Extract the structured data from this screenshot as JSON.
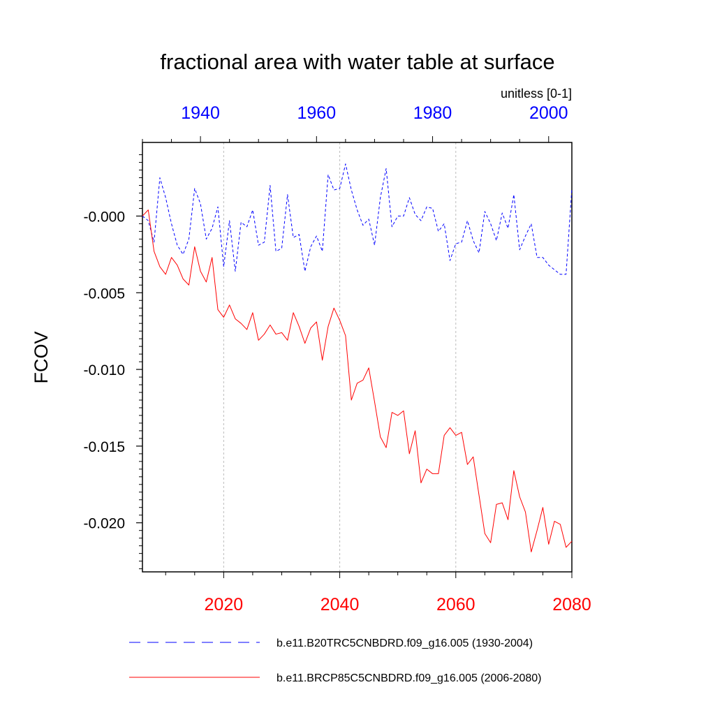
{
  "chart_data": {
    "type": "line",
    "title": "fractional area with water table at surface",
    "units_label": "unitless [0-1]",
    "ylabel": "FCOV",
    "ylim": [
      -0.0232,
      0.0048
    ],
    "y_major_ticks": [
      0.0,
      -0.005,
      -0.01,
      -0.015,
      -0.02
    ],
    "y_tick_labels": [
      "-0.000",
      "-0.005",
      "-0.010",
      "-0.015",
      "-0.020"
    ],
    "top_axis": {
      "color": "#0000ff",
      "xlim": [
        1930,
        2004
      ],
      "ticks": [
        1940,
        1960,
        1980,
        2000
      ],
      "tick_labels": [
        "1940",
        "1960",
        "1980",
        "2000"
      ]
    },
    "bottom_axis": {
      "color": "#ff0000",
      "xlim": [
        2006,
        2080
      ],
      "ticks": [
        2020,
        2040,
        2060,
        2080
      ],
      "tick_labels": [
        "2020",
        "2040",
        "2060",
        "2080"
      ]
    },
    "grid": "vertical dashed at major ticks",
    "series": [
      {
        "name": "b.e11.B20TRC5CNBDRD.f09_g16.005 (1930-2004)",
        "color": "#0000ff",
        "style": "dashed",
        "axis": "top",
        "x_start": 1930,
        "values": [
          0.0,
          -0.0003,
          -0.0017,
          0.0025,
          0.0012,
          -0.0005,
          -0.0019,
          -0.0025,
          -0.0015,
          0.0018,
          0.0008,
          -0.0015,
          -0.0008,
          0.0006,
          -0.0033,
          -0.0003,
          -0.0036,
          -0.0004,
          -0.0007,
          0.0004,
          -0.0019,
          -0.0017,
          0.002,
          -0.0023,
          -0.0021,
          0.0014,
          -0.0014,
          -0.0012,
          -0.0036,
          -0.002,
          -0.0013,
          -0.0023,
          0.0027,
          0.0017,
          0.0018,
          0.0034,
          0.0017,
          0.0004,
          -0.0006,
          -0.0002,
          -0.0019,
          0.0012,
          0.0031,
          -0.0007,
          0.0,
          0.0,
          0.0012,
          0.0001,
          -0.0003,
          0.0006,
          0.0005,
          -0.001,
          -0.0005,
          -0.0029,
          -0.0018,
          -0.0017,
          -0.0003,
          -0.0016,
          -0.0024,
          0.0003,
          -0.0005,
          -0.0016,
          0.0002,
          -0.0008,
          0.0014,
          -0.0022,
          -0.0013,
          -0.0005,
          -0.0027,
          -0.0027,
          -0.0032,
          -0.0035,
          -0.0038,
          -0.0038,
          0.0018
        ]
      },
      {
        "name": "b.e11.BRCP85C5CNBDRD.f09_g16.005 (2006-2080)",
        "color": "#ff0000",
        "style": "solid",
        "axis": "bottom",
        "x_start": 2006,
        "values": [
          0.0,
          0.0004,
          -0.0023,
          -0.0033,
          -0.0038,
          -0.0027,
          -0.0032,
          -0.0041,
          -0.0045,
          -0.002,
          -0.0036,
          -0.0043,
          -0.0027,
          -0.0061,
          -0.0066,
          -0.0058,
          -0.0067,
          -0.007,
          -0.0074,
          -0.0063,
          -0.0081,
          -0.0077,
          -0.0071,
          -0.0077,
          -0.0076,
          -0.0081,
          -0.0063,
          -0.0072,
          -0.0083,
          -0.0073,
          -0.0069,
          -0.0094,
          -0.0072,
          -0.006,
          -0.0068,
          -0.0078,
          -0.012,
          -0.0109,
          -0.0107,
          -0.0099,
          -0.0121,
          -0.0144,
          -0.0151,
          -0.0128,
          -0.013,
          -0.0127,
          -0.0155,
          -0.014,
          -0.0174,
          -0.0165,
          -0.0168,
          -0.0168,
          -0.0143,
          -0.0138,
          -0.0143,
          -0.0141,
          -0.0162,
          -0.0157,
          -0.0182,
          -0.0207,
          -0.0213,
          -0.0188,
          -0.0187,
          -0.0198,
          -0.0166,
          -0.0183,
          -0.0193,
          -0.0219,
          -0.0205,
          -0.019,
          -0.0214,
          -0.0199,
          -0.0201,
          -0.0216,
          -0.0212
        ]
      }
    ]
  }
}
